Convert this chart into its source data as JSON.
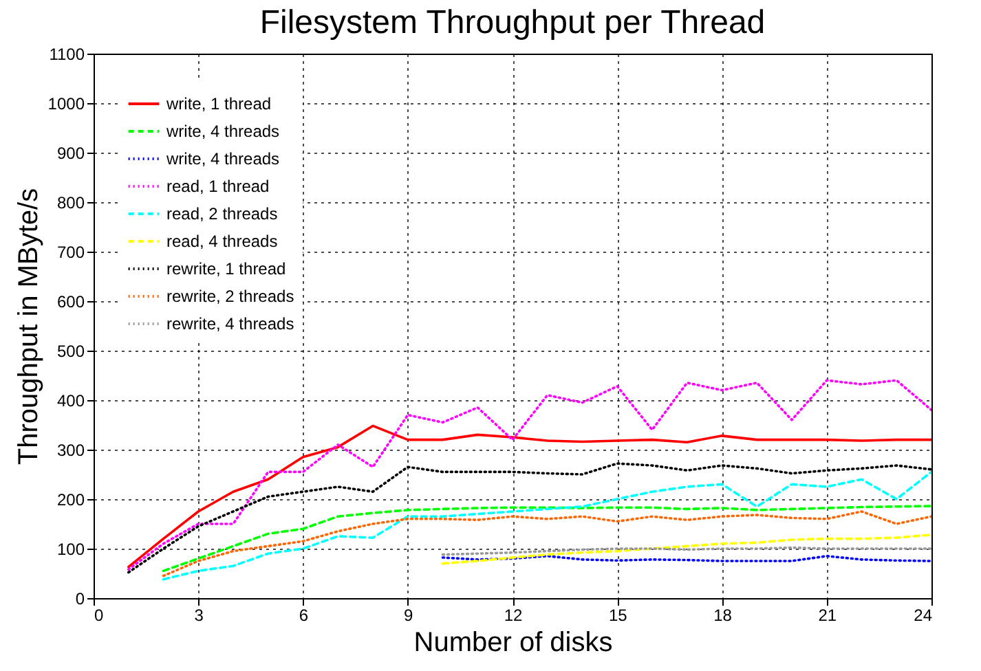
{
  "chart_data": {
    "type": "line",
    "title": "Filesystem Throughput per Thread",
    "xlabel": "Number of disks",
    "ylabel": "Throughput in MByte/s",
    "xlim": [
      0,
      24
    ],
    "xticks": [
      0,
      3,
      6,
      9,
      12,
      15,
      18,
      21,
      24
    ],
    "ylim": [
      0,
      1100
    ],
    "yticks": [
      0,
      100,
      200,
      300,
      400,
      500,
      600,
      700,
      800,
      900,
      1000,
      1100
    ],
    "grid": true,
    "legend": "top left",
    "marker": "none",
    "series": [
      {
        "name": "write, 1 thread",
        "color": "#ff0000",
        "line_style": "solid",
        "x": [
          1,
          2,
          3,
          4,
          5,
          6,
          7,
          8,
          9,
          10,
          11,
          12,
          13,
          14,
          15,
          16,
          17,
          18,
          19,
          20,
          21,
          22,
          23,
          24
        ],
        "values": [
          63,
          120,
          175,
          215,
          240,
          285,
          305,
          348,
          320,
          320,
          330,
          325,
          318,
          316,
          318,
          320,
          315,
          328,
          320,
          320,
          320,
          318,
          320,
          320
        ]
      },
      {
        "name": "write, 4 threads",
        "color": "#00ff00",
        "line_style": "dashed",
        "x": [
          2,
          3,
          4,
          5,
          6,
          7,
          8,
          9,
          10,
          11,
          12,
          13,
          14,
          15,
          16,
          17,
          18,
          19,
          20,
          21,
          22,
          23,
          24
        ],
        "values": [
          55,
          80,
          105,
          130,
          140,
          165,
          172,
          178,
          180,
          182,
          183,
          183,
          182,
          183,
          183,
          180,
          182,
          178,
          180,
          182,
          184,
          185,
          186
        ]
      },
      {
        "name": "write, 4 threads",
        "color": "#0000ff",
        "line_style": "dotted",
        "x": [
          10,
          11,
          12,
          13,
          14,
          15,
          16,
          17,
          18,
          19,
          20,
          21,
          22,
          23,
          24
        ],
        "values": [
          82,
          78,
          80,
          85,
          78,
          76,
          78,
          77,
          75,
          75,
          75,
          85,
          78,
          76,
          75
        ]
      },
      {
        "name": "read, 1 thread",
        "color": "#ff00ff",
        "line_style": "dotted",
        "x": [
          1,
          2,
          3,
          4,
          5,
          6,
          7,
          8,
          9,
          10,
          11,
          12,
          13,
          14,
          15,
          16,
          17,
          18,
          19,
          20,
          21,
          22,
          23,
          24
        ],
        "values": [
          58,
          110,
          150,
          150,
          255,
          255,
          310,
          265,
          370,
          355,
          385,
          320,
          410,
          395,
          428,
          340,
          435,
          420,
          435,
          360,
          440,
          432,
          440,
          380
        ]
      },
      {
        "name": "read, 2 threads",
        "color": "#00ffff",
        "line_style": "dashed",
        "x": [
          2,
          3,
          4,
          5,
          6,
          7,
          8,
          9,
          10,
          11,
          12,
          13,
          14,
          15,
          16,
          17,
          18,
          19,
          20,
          21,
          22,
          23,
          24
        ],
        "values": [
          38,
          55,
          65,
          90,
          100,
          125,
          122,
          165,
          165,
          170,
          175,
          180,
          185,
          200,
          215,
          225,
          230,
          185,
          230,
          225,
          240,
          200,
          255
        ]
      },
      {
        "name": "read, 4 threads",
        "color": "#ffff00",
        "line_style": "dashed",
        "x": [
          10,
          11,
          12,
          13,
          14,
          15,
          16,
          17,
          18,
          19,
          20,
          21,
          22,
          23,
          24
        ],
        "values": [
          70,
          75,
          82,
          88,
          92,
          95,
          100,
          105,
          110,
          112,
          118,
          120,
          120,
          122,
          128
        ]
      },
      {
        "name": "rewrite, 1 thread",
        "color": "#000000",
        "line_style": "dotted",
        "x": [
          1,
          2,
          3,
          4,
          5,
          6,
          7,
          8,
          9,
          10,
          11,
          12,
          13,
          14,
          15,
          16,
          17,
          18,
          19,
          20,
          21,
          22,
          23,
          24
        ],
        "values": [
          52,
          100,
          145,
          175,
          205,
          215,
          225,
          215,
          265,
          255,
          255,
          255,
          252,
          250,
          272,
          268,
          258,
          268,
          262,
          252,
          258,
          262,
          268,
          260
        ]
      },
      {
        "name": "rewrite, 2 threads",
        "color": "#ff6600",
        "line_style": "dotted",
        "x": [
          2,
          3,
          4,
          5,
          6,
          7,
          8,
          9,
          10,
          11,
          12,
          13,
          14,
          15,
          16,
          17,
          18,
          19,
          20,
          21,
          22,
          23,
          24
        ],
        "values": [
          45,
          75,
          95,
          105,
          115,
          135,
          150,
          160,
          160,
          158,
          165,
          160,
          165,
          155,
          165,
          158,
          165,
          168,
          162,
          160,
          175,
          150,
          165
        ]
      },
      {
        "name": "rewrite, 4 threads",
        "color": "#999999",
        "line_style": "dotted",
        "x": [
          10,
          11,
          12,
          13,
          14,
          15,
          16,
          17,
          18,
          19,
          20,
          21,
          22,
          23,
          24
        ],
        "values": [
          88,
          90,
          92,
          95,
          98,
          100,
          100,
          98,
          100,
          100,
          102,
          100,
          100,
          100,
          100
        ]
      }
    ]
  }
}
